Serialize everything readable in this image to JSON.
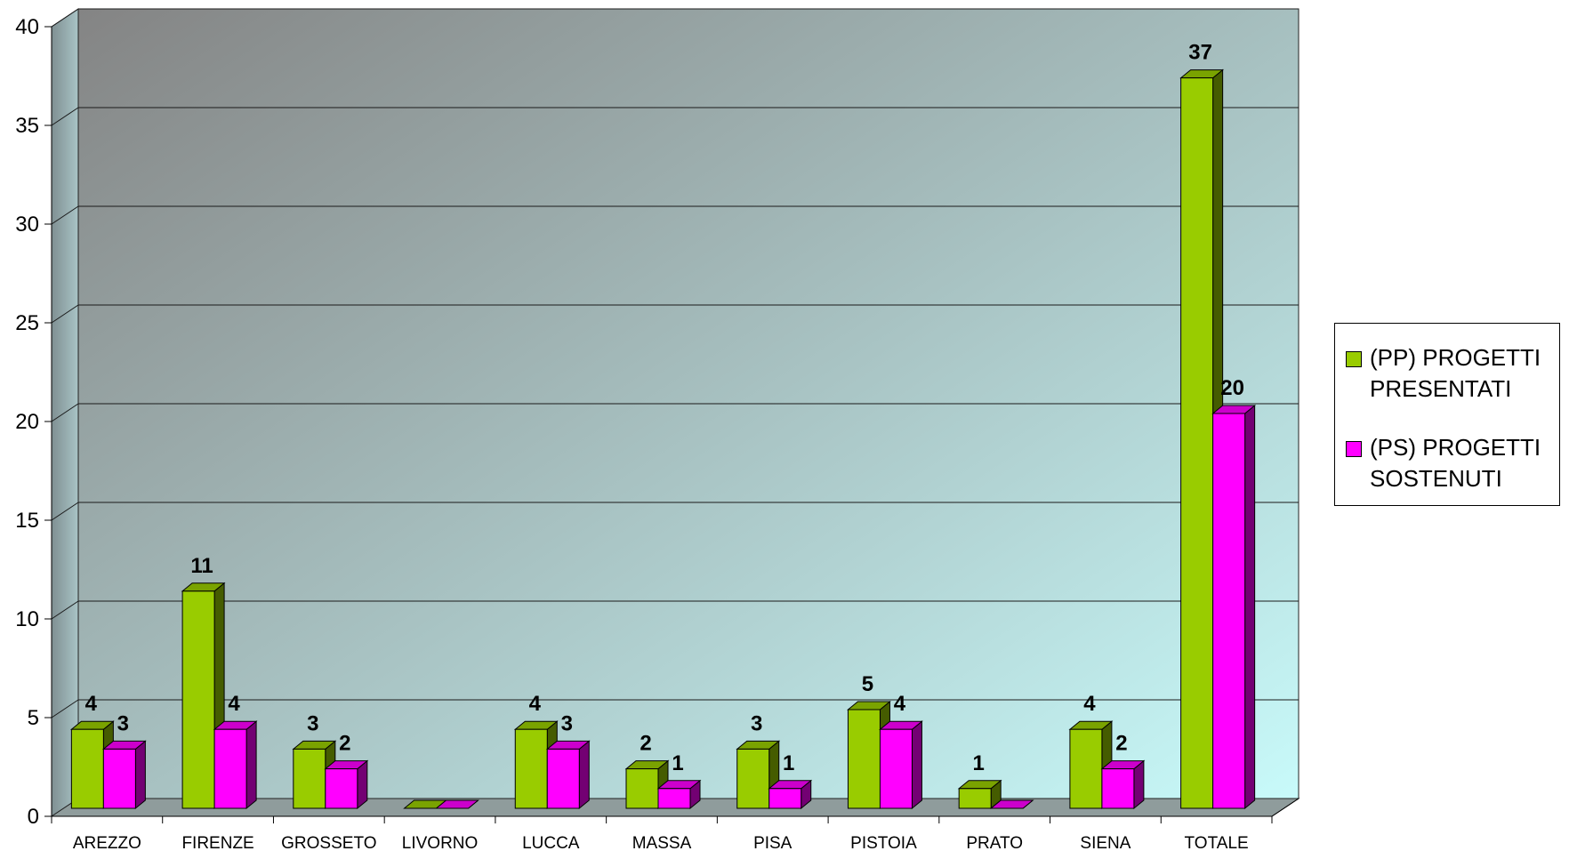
{
  "chart_data": {
    "type": "bar",
    "categories": [
      "AREZZO",
      "FIRENZE",
      "GROSSETO",
      "LIVORNO",
      "LUCCA",
      "MASSA",
      "PISA",
      "PISTOIA",
      "PRATO",
      "SIENA",
      "TOTALE"
    ],
    "series": [
      {
        "name": "(PP) PROGETTI PRESENTATI",
        "values": [
          4,
          11,
          3,
          0,
          4,
          2,
          3,
          5,
          1,
          4,
          37
        ],
        "labels": [
          "4",
          "11",
          "3",
          "",
          "4",
          "2",
          "3",
          "5",
          "1",
          "4",
          "37"
        ],
        "color": "#99cc00"
      },
      {
        "name": "(PS) PROGETTI SOSTENUTI",
        "values": [
          3,
          4,
          2,
          0,
          3,
          1,
          1,
          4,
          0,
          2,
          20
        ],
        "labels": [
          "3",
          "4",
          "2",
          "",
          "3",
          "1",
          "1",
          "4",
          "",
          "2",
          "20"
        ],
        "color": "#ff00ff"
      }
    ],
    "ylim": [
      0,
      40
    ],
    "yticks": [
      0,
      5,
      10,
      15,
      20,
      25,
      30,
      35,
      40
    ],
    "grid": true,
    "legend_position": "right",
    "style": "3d-column",
    "wall_gradient": [
      "#848484",
      "#c8fafa"
    ]
  }
}
